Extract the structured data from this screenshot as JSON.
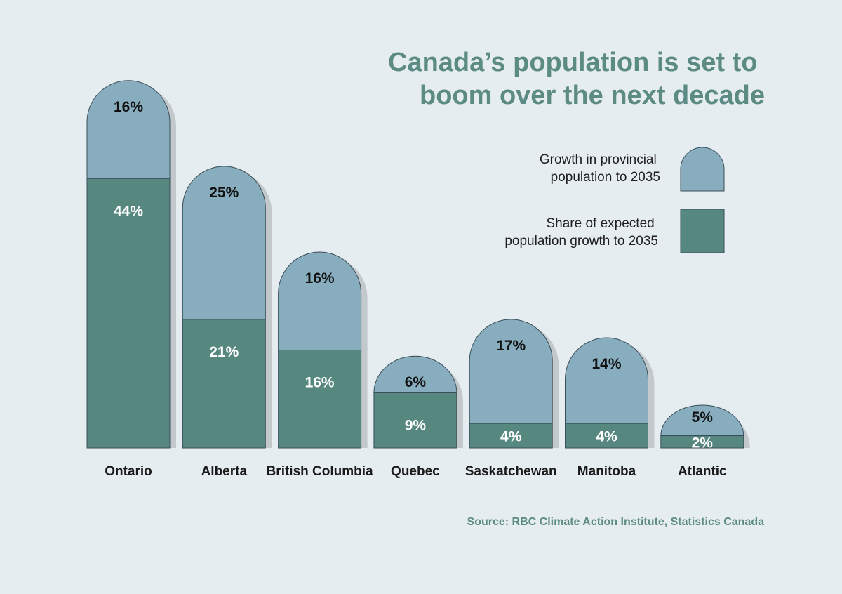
{
  "title_lines": [
    "Canada’s population is set to",
    "boom over the next decade"
  ],
  "legend": [
    {
      "lines": [
        "Growth in provincial",
        "population to 2035"
      ],
      "color": "#87adbf",
      "shape": "rounded-top"
    },
    {
      "lines": [
        "Share of expected",
        "population growth to 2035"
      ],
      "color": "#578880",
      "shape": "square"
    }
  ],
  "source": "Source: RBC Climate Action Institute, Statistics Canada",
  "colors": {
    "background": "#e6edf1",
    "growth": "#87adbf",
    "share": "#578880",
    "shadow": "#c3c8cc",
    "title": "#5c8b84",
    "dark_label": "#111111",
    "light_label": "#ffffff"
  },
  "chart_data": {
    "type": "bar",
    "stacked": true,
    "categories": [
      "Ontario",
      "Alberta",
      "British Columbia",
      "Quebec",
      "Saskatchewan",
      "Manitoba",
      "Atlantic"
    ],
    "series": [
      {
        "name": "Share of expected population growth to 2035",
        "values": [
          44,
          21,
          16,
          9,
          4,
          4,
          2
        ],
        "labels": [
          "44%",
          "21%",
          "16%",
          "9%",
          "4%",
          "4%",
          "2%"
        ]
      },
      {
        "name": "Growth in provincial population to 2035",
        "values": [
          16,
          25,
          16,
          6,
          17,
          14,
          5
        ],
        "labels": [
          "16%",
          "25%",
          "16%",
          "6%",
          "17%",
          "14%",
          "5%"
        ]
      }
    ],
    "title": "Canada’s population is set to boom over the next decade",
    "xlabel": "",
    "ylabel": "",
    "grid": false,
    "legend_position": "top-right"
  }
}
